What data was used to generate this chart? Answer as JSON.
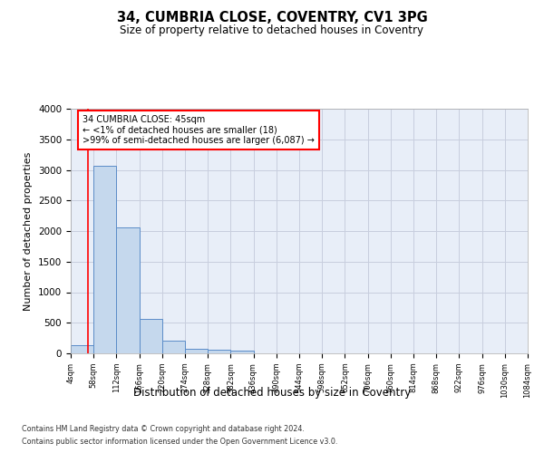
{
  "title": "34, CUMBRIA CLOSE, COVENTRY, CV1 3PG",
  "subtitle": "Size of property relative to detached houses in Coventry",
  "xlabel": "Distribution of detached houses by size in Coventry",
  "ylabel": "Number of detached properties",
  "footnote1": "Contains HM Land Registry data © Crown copyright and database right 2024.",
  "footnote2": "Contains public sector information licensed under the Open Government Licence v3.0.",
  "annotation_line1": "34 CUMBRIA CLOSE: 45sqm",
  "annotation_line2": "← <1% of detached houses are smaller (18)",
  "annotation_line3": ">99% of semi-detached houses are larger (6,087) →",
  "bar_color": "#c5d8ed",
  "bar_edge_color": "#5b8cc8",
  "bar_heights": [
    130,
    3060,
    2060,
    570,
    210,
    75,
    60,
    45,
    0,
    0,
    0,
    0,
    0,
    0,
    0,
    0,
    0,
    0,
    0,
    0
  ],
  "x_tick_labels": [
    "4sqm",
    "58sqm",
    "112sqm",
    "166sqm",
    "220sqm",
    "274sqm",
    "328sqm",
    "382sqm",
    "436sqm",
    "490sqm",
    "544sqm",
    "598sqm",
    "652sqm",
    "706sqm",
    "760sqm",
    "814sqm",
    "868sqm",
    "922sqm",
    "976sqm",
    "1030sqm",
    "1084sqm"
  ],
  "ylim": [
    0,
    4000
  ],
  "yticks": [
    0,
    500,
    1000,
    1500,
    2000,
    2500,
    3000,
    3500,
    4000
  ],
  "n_bars": 20,
  "ax_background": "#e8eef8",
  "background_color": "#ffffff",
  "grid_color": "#c8cede"
}
